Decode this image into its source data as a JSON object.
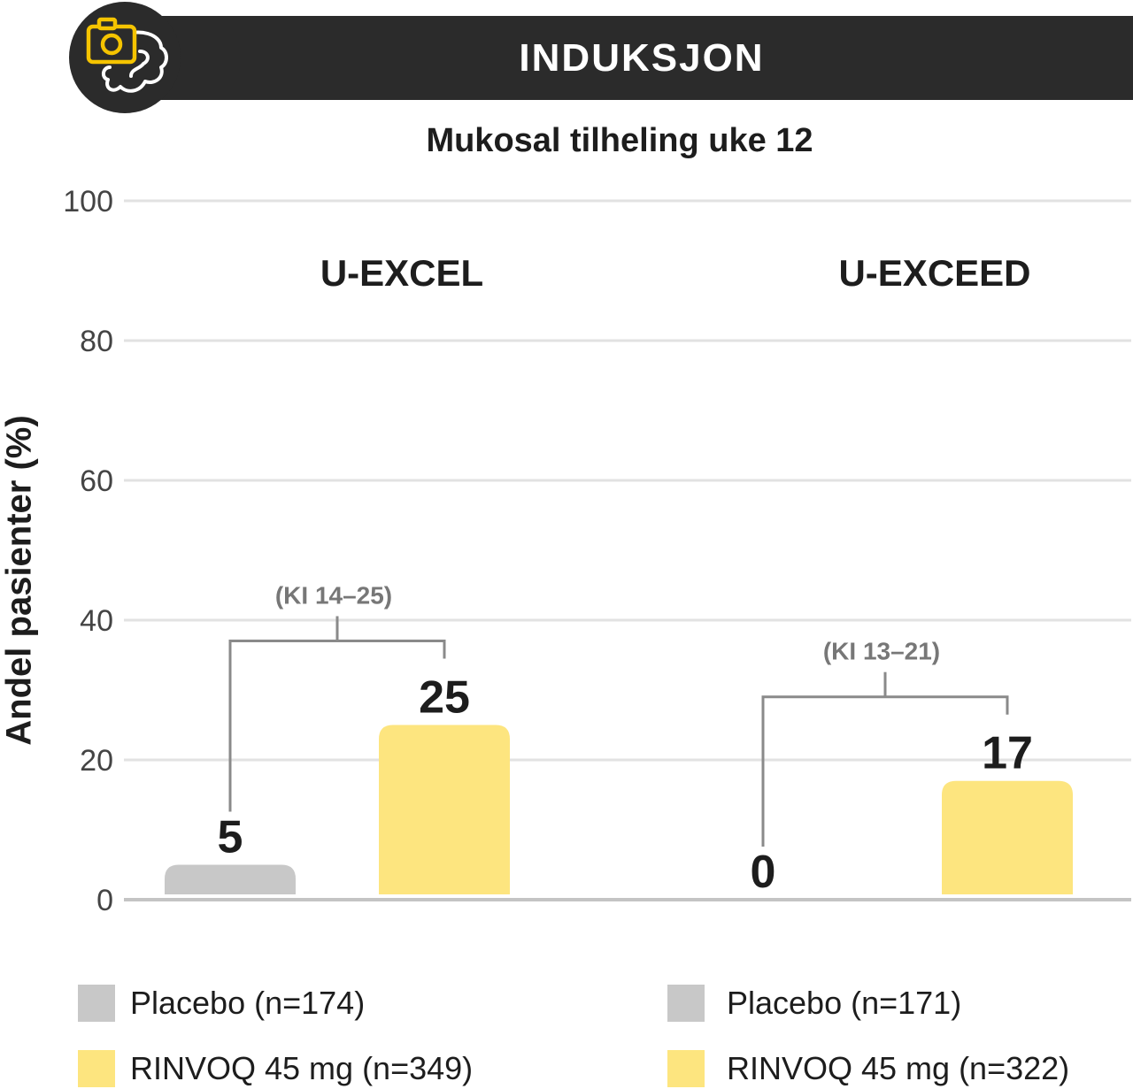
{
  "header": {
    "title": "INDUKSJON",
    "icon": "camera-intestine-icon",
    "accent_color": "#f5c400"
  },
  "chart_data": {
    "type": "bar",
    "title": "Mukosal tilheling uke 12",
    "ylabel": "Andel pasienter (%)",
    "ylim": [
      0,
      100
    ],
    "yticks": [
      "0",
      "20",
      "40",
      "60",
      "80",
      "100"
    ],
    "grid": true,
    "groups": [
      {
        "name": "U-EXCEL",
        "bars": [
          {
            "series": "Placebo",
            "value": 5,
            "label": "5",
            "color": "#c8c8c8"
          },
          {
            "series": "RINVOQ 45 mg",
            "value": 25,
            "label": "25",
            "color": "#fde57f"
          }
        ],
        "ci_label": "(KI 14–25)"
      },
      {
        "name": "U-EXCEED",
        "bars": [
          {
            "series": "Placebo",
            "value": 0,
            "label": "0",
            "color": "#c8c8c8"
          },
          {
            "series": "RINVOQ 45 mg",
            "value": 17,
            "label": "17",
            "color": "#fde57f"
          }
        ],
        "ci_label": "(KI 13–21)"
      }
    ]
  },
  "legends": [
    {
      "items": [
        {
          "label": "Placebo (n=174)",
          "color": "#c8c8c8"
        },
        {
          "label": "RINVOQ 45 mg (n=349)",
          "color": "#fde57f"
        }
      ]
    },
    {
      "items": [
        {
          "label": "Placebo (n=171)",
          "color": "#c8c8c8"
        },
        {
          "label": "RINVOQ 45 mg (n=322)",
          "color": "#fde57f"
        }
      ]
    }
  ]
}
